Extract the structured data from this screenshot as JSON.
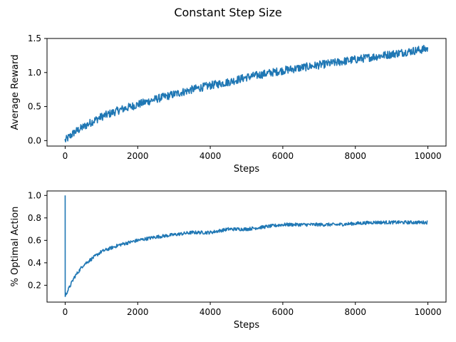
{
  "figure": {
    "suptitle": "Constant Step Size"
  },
  "chart_data": [
    {
      "type": "line",
      "title": "",
      "xlabel": "Steps",
      "ylabel": "Average Reward",
      "xlim": [
        -500,
        10500
      ],
      "ylim": [
        -0.08,
        1.5
      ],
      "xticks": [
        0,
        2000,
        4000,
        6000,
        8000,
        10000
      ],
      "yticks": [
        0.0,
        0.5,
        1.0,
        1.5
      ],
      "ytick_labels": [
        "0.0",
        "0.5",
        "1.0",
        "1.5"
      ],
      "grid": false,
      "color": "#1f77b4",
      "noise_band": 0.06,
      "series": [
        {
          "x": [
            0,
            250,
            500,
            750,
            1000,
            1500,
            2000,
            2500,
            3000,
            3500,
            4000,
            4500,
            5000,
            5500,
            6000,
            6500,
            7000,
            7500,
            8000,
            8500,
            9000,
            9500,
            10000
          ],
          "values": [
            0.0,
            0.12,
            0.2,
            0.28,
            0.35,
            0.45,
            0.53,
            0.61,
            0.68,
            0.75,
            0.81,
            0.86,
            0.93,
            0.98,
            1.03,
            1.07,
            1.11,
            1.15,
            1.19,
            1.23,
            1.27,
            1.31,
            1.35
          ]
        }
      ]
    },
    {
      "type": "line",
      "title": "",
      "xlabel": "Steps",
      "ylabel": "% Optimal Action",
      "xlim": [
        -500,
        10500
      ],
      "ylim": [
        0.05,
        1.04
      ],
      "xticks": [
        0,
        2000,
        4000,
        6000,
        8000,
        10000
      ],
      "yticks": [
        0.2,
        0.4,
        0.6,
        0.8,
        1.0
      ],
      "ytick_labels": [
        "0.2",
        "0.4",
        "0.6",
        "0.8",
        "1.0"
      ],
      "grid": false,
      "color": "#1f77b4",
      "noise_band": 0.015,
      "series": [
        {
          "x": [
            0,
            1,
            20,
            100,
            250,
            500,
            750,
            1000,
            1500,
            2000,
            2500,
            3000,
            3500,
            4000,
            4500,
            5000,
            5500,
            6000,
            6500,
            7000,
            7500,
            8000,
            8500,
            9000,
            9500,
            10000
          ],
          "values": [
            1.0,
            0.1,
            0.12,
            0.17,
            0.27,
            0.38,
            0.44,
            0.5,
            0.56,
            0.6,
            0.63,
            0.65,
            0.67,
            0.67,
            0.7,
            0.7,
            0.72,
            0.74,
            0.74,
            0.74,
            0.74,
            0.75,
            0.76,
            0.76,
            0.76,
            0.76
          ]
        }
      ]
    }
  ]
}
